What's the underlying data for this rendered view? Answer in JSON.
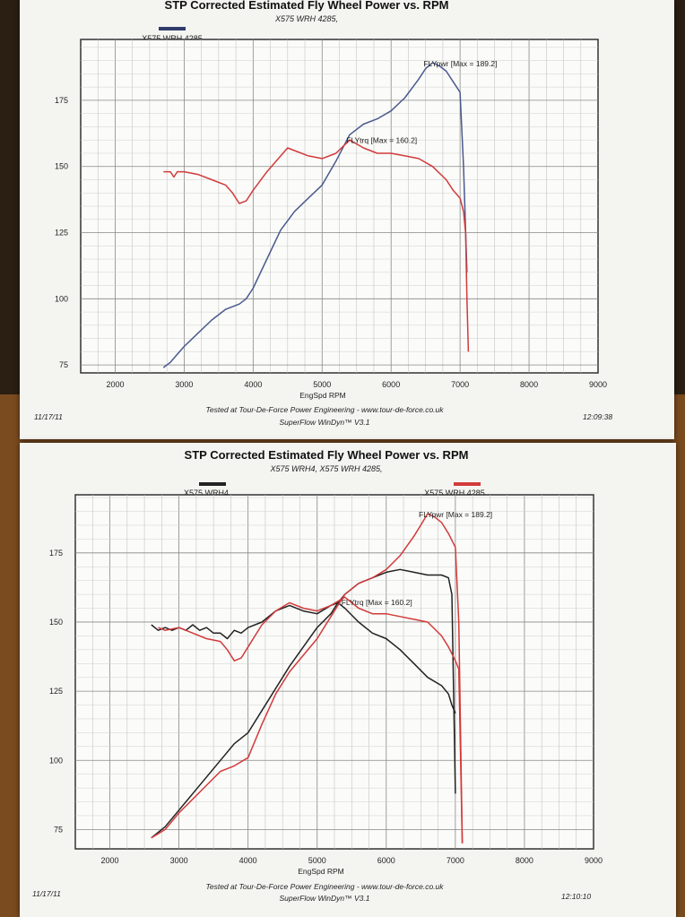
{
  "chart_data": [
    {
      "type": "line",
      "title": "STP Corrected Estimated Fly Wheel Power vs. RPM",
      "subtitle": "X575 WRH 4285,",
      "xlabel": "EngSpd RPM",
      "xlim": [
        1500,
        9000
      ],
      "ylim": [
        72,
        198
      ],
      "x_ticks": [
        "2000",
        "3000",
        "4000",
        "5000",
        "6000",
        "7000",
        "8000",
        "9000"
      ],
      "y_ticks": [
        "75",
        "100",
        "125",
        "150",
        "175"
      ],
      "legend": [
        {
          "name": "X575 WRH 4285",
          "color": "#2f3b6a"
        }
      ],
      "annotations": {
        "power_max": "FLYpwr [Max = 189.2]",
        "torque_max": "FLYtrq [Max = 160.2]"
      },
      "footer": {
        "tested": "Tested at Tour-De-Force Power Engineering - www.tour-de-force.co.uk",
        "software": "SuperFlow WinDyn™ V3.1",
        "date": "11/17/11",
        "time": "12:09:38"
      },
      "series": [
        {
          "name": "X575 WRH 4285",
          "kind": "power",
          "color": "#4a5a8e",
          "x": [
            2700,
            2800,
            2900,
            3000,
            3200,
            3400,
            3600,
            3800,
            3900,
            4000,
            4200,
            4400,
            4600,
            4800,
            5000,
            5200,
            5400,
            5600,
            5800,
            6000,
            6200,
            6400,
            6500,
            6600,
            6700,
            6800,
            6900,
            6950,
            7000,
            7050,
            7100
          ],
          "y": [
            74,
            76,
            79,
            82,
            87,
            92,
            96,
            98,
            100,
            104,
            115,
            126,
            133,
            138,
            143,
            152,
            162,
            166,
            168,
            171,
            176,
            183,
            187,
            189.2,
            188,
            186,
            182,
            180,
            178,
            150,
            110
          ]
        },
        {
          "name": "X575 WRH 4285",
          "kind": "torque",
          "color": "#d23a3a",
          "x": [
            2700,
            2800,
            2850,
            2900,
            3000,
            3200,
            3400,
            3600,
            3700,
            3800,
            3900,
            4000,
            4200,
            4400,
            4500,
            4600,
            4800,
            5000,
            5200,
            5400,
            5600,
            5800,
            6000,
            6200,
            6400,
            6600,
            6800,
            6900,
            7000,
            7050,
            7080,
            7100,
            7120
          ],
          "y": [
            148,
            148,
            146,
            148,
            148,
            147,
            145,
            143,
            140,
            136,
            137,
            141,
            148,
            154,
            157,
            156,
            154,
            153,
            155,
            160,
            157,
            155,
            155,
            154,
            153,
            150,
            145,
            141,
            138,
            133,
            125,
            100,
            80
          ]
        }
      ]
    },
    {
      "type": "line",
      "title": "STP Corrected Estimated Fly Wheel Power vs. RPM",
      "subtitle": "X575 WRH4, X575 WRH 4285,",
      "xlabel": "EngSpd RPM",
      "xlim": [
        1500,
        9000
      ],
      "ylim": [
        68,
        196
      ],
      "x_ticks": [
        "2000",
        "3000",
        "4000",
        "5000",
        "6000",
        "7000",
        "8000",
        "9000"
      ],
      "y_ticks": [
        "75",
        "100",
        "125",
        "150",
        "175"
      ],
      "legend": [
        {
          "name": "X575 WRH4",
          "color": "#222222"
        },
        {
          "name": "X575 WRH 4285",
          "color": "#d23a3a"
        }
      ],
      "annotations": {
        "power_max": "FLYpwr [Max = 189.2]",
        "torque_max": "FLYtrq [Max = 160.2]"
      },
      "footer": {
        "tested": "Tested at Tour-De-Force Power Engineering - www.tour-de-force.co.uk",
        "software": "SuperFlow WinDyn™ V3.1",
        "date": "11/17/11",
        "time": "12:10:10"
      },
      "series": [
        {
          "name": "X575 WRH4",
          "kind": "power",
          "color": "#222222",
          "x": [
            2600,
            2800,
            3000,
            3200,
            3400,
            3600,
            3800,
            4000,
            4200,
            4400,
            4600,
            4800,
            5000,
            5200,
            5300,
            5400,
            5600,
            5800,
            6000,
            6200,
            6400,
            6600,
            6800,
            6900,
            6950,
            7000
          ],
          "y": [
            72,
            76,
            82,
            88,
            94,
            100,
            106,
            110,
            118,
            126,
            134,
            141,
            148,
            153,
            157,
            160,
            164,
            166,
            168,
            169,
            168,
            167,
            167,
            166,
            160,
            88
          ]
        },
        {
          "name": "X575 WRH4",
          "kind": "torque",
          "color": "#222222",
          "x": [
            2600,
            2700,
            2800,
            2900,
            3000,
            3100,
            3200,
            3300,
            3400,
            3500,
            3600,
            3700,
            3800,
            3900,
            4000,
            4200,
            4400,
            4600,
            4800,
            5000,
            5200,
            5300,
            5400,
            5600,
            5800,
            6000,
            6200,
            6400,
            6600,
            6800,
            6900,
            6950,
            7000
          ],
          "y": [
            149,
            147,
            148,
            147,
            148,
            147,
            149,
            147,
            148,
            146,
            146,
            144,
            147,
            146,
            148,
            150,
            154,
            156,
            154,
            153,
            156,
            157,
            155,
            150,
            146,
            144,
            140,
            135,
            130,
            127,
            124,
            120,
            117
          ]
        },
        {
          "name": "X575 WRH 4285",
          "kind": "power",
          "color": "#d23a3a",
          "x": [
            2600,
            2800,
            3000,
            3200,
            3400,
            3600,
            3800,
            4000,
            4200,
            4400,
            4600,
            4800,
            5000,
            5200,
            5400,
            5600,
            5800,
            6000,
            6200,
            6400,
            6500,
            6600,
            6700,
            6800,
            6900,
            7000,
            7050,
            7100
          ],
          "y": [
            72,
            75,
            81,
            86,
            91,
            96,
            98,
            101,
            113,
            124,
            132,
            138,
            144,
            152,
            160,
            164,
            166,
            169,
            174,
            181,
            185,
            189.2,
            188,
            186,
            182,
            177,
            150,
            70
          ]
        },
        {
          "name": "X575 WRH 4285",
          "kind": "torque",
          "color": "#d23a3a",
          "x": [
            2700,
            2800,
            3000,
            3200,
            3400,
            3600,
            3700,
            3800,
            3900,
            4000,
            4200,
            4400,
            4600,
            4800,
            5000,
            5200,
            5400,
            5600,
            5800,
            6000,
            6200,
            6400,
            6600,
            6800,
            6900,
            7000,
            7050,
            7100
          ],
          "y": [
            148,
            147,
            148,
            146,
            144,
            143,
            140,
            136,
            137,
            141,
            149,
            154,
            157,
            155,
            154,
            156,
            159,
            155,
            153,
            153,
            152,
            151,
            150,
            145,
            141,
            136,
            133,
            70
          ]
        }
      ]
    }
  ]
}
